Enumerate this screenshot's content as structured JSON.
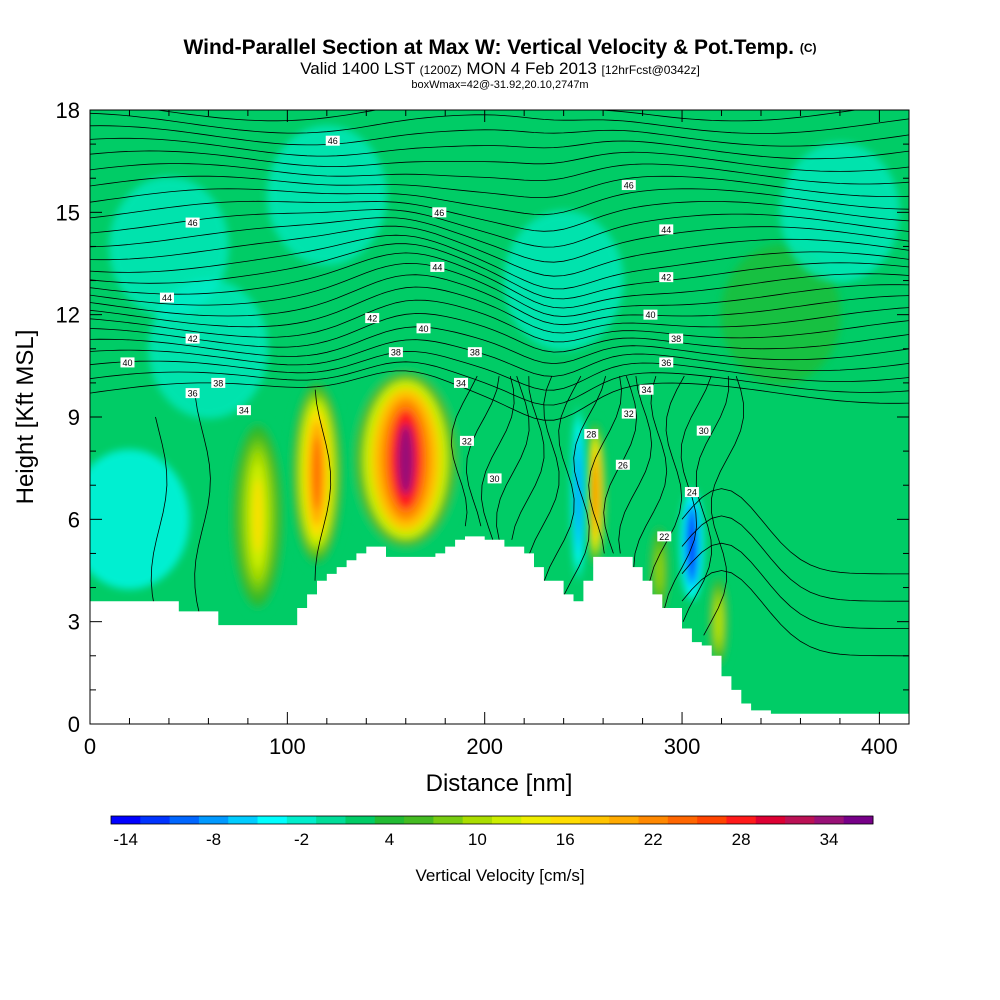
{
  "header": {
    "title": "Wind-Parallel Section at Max W: Vertical Velocity & Pot.Temp.",
    "copyright": "(C)",
    "valid_prefix": "Valid 1400 LST",
    "valid_utc": "(1200Z)",
    "valid_date": "MON 4 Feb 2013",
    "forecast": "[12hrFcst@0342z]",
    "boxinfo": "boxWmax=42@-31.92,20.10,2747m"
  },
  "colors": {
    "background": "#ffffff",
    "terrain": "#ffffff",
    "base_fill": "#00cc66",
    "contour": "#000000"
  },
  "chart_data": {
    "type": "heatmap",
    "title": "Wind-Parallel Section at Max W: Vertical Velocity & Pot.Temp.",
    "xlabel": "Distance [nm]",
    "ylabel": "Height [Kft MSL]",
    "xlim": [
      0,
      415
    ],
    "ylim": [
      0,
      18
    ],
    "x_ticks": [
      0,
      100,
      200,
      300,
      400
    ],
    "y_ticks": [
      0,
      3,
      6,
      9,
      12,
      15,
      18
    ],
    "colorbar": {
      "label": "Vertical Velocity [cm/s]",
      "tick_labels": [
        "-14",
        "-8",
        "-2",
        "4",
        "10",
        "16",
        "22",
        "28",
        "34"
      ],
      "levels": [
        -14,
        -12,
        -10,
        -8,
        -6,
        -4,
        -2,
        0,
        2,
        4,
        6,
        8,
        10,
        12,
        14,
        16,
        18,
        20,
        22,
        24,
        26,
        28,
        30,
        32,
        34,
        36
      ],
      "colors": [
        "#0000ff",
        "#0033ff",
        "#0066ff",
        "#0099ff",
        "#00ccff",
        "#00ffff",
        "#00eecc",
        "#00dd99",
        "#00cc66",
        "#22bb33",
        "#44bb22",
        "#77cc11",
        "#aadd00",
        "#ccee00",
        "#eeee00",
        "#ffdd00",
        "#ffc400",
        "#ffaa00",
        "#ff8800",
        "#ff6600",
        "#ff4400",
        "#ff1a1a",
        "#dd0033",
        "#bb1155",
        "#991177",
        "#770088"
      ]
    },
    "terrain": {
      "distance_nm": [
        0,
        45,
        65,
        105,
        110,
        115,
        120,
        125,
        130,
        135,
        140,
        145,
        150,
        165,
        175,
        180,
        185,
        190,
        200,
        210,
        220,
        225,
        230,
        240,
        245,
        250,
        255,
        260,
        270,
        275,
        280,
        285,
        290,
        300,
        305,
        310,
        315,
        320,
        325,
        330,
        335,
        345,
        400,
        415
      ],
      "height_kft": [
        3.6,
        3.3,
        2.9,
        3.4,
        3.8,
        4.2,
        4.4,
        4.6,
        4.8,
        5.0,
        5.2,
        5.2,
        4.9,
        4.9,
        5.0,
        5.2,
        5.4,
        5.5,
        5.4,
        5.2,
        5.0,
        4.6,
        4.2,
        3.8,
        3.6,
        4.2,
        4.9,
        4.9,
        4.9,
        4.6,
        4.2,
        3.8,
        3.4,
        2.8,
        2.4,
        2.3,
        2.0,
        1.4,
        1.0,
        0.6,
        0.4,
        0.3,
        0.3,
        0.3
      ]
    },
    "vertical_velocity_features": [
      {
        "name": "updraft-core-150-170",
        "x_range_nm": [
          130,
          190
        ],
        "z_range_kft": [
          5,
          10.5
        ],
        "peak_cms": 34
      },
      {
        "name": "updraft-115",
        "x_range_nm": [
          100,
          130
        ],
        "z_range_kft": [
          4.5,
          10.2
        ],
        "peak_cms": 24
      },
      {
        "name": "updraft-85",
        "x_range_nm": [
          70,
          100
        ],
        "z_range_kft": [
          3.2,
          9
        ],
        "peak_cms": 16
      },
      {
        "name": "updraft-255",
        "x_range_nm": [
          250,
          262
        ],
        "z_range_kft": [
          4.5,
          9
        ],
        "peak_cms": 24
      },
      {
        "name": "downdraft-248",
        "x_range_nm": [
          243,
          252
        ],
        "z_range_kft": [
          4,
          9.5
        ],
        "peak_cms": -10
      },
      {
        "name": "downdraft-305",
        "x_range_nm": [
          298,
          312
        ],
        "z_range_kft": [
          3.5,
          7
        ],
        "peak_cms": -14
      },
      {
        "name": "updraft-318",
        "x_range_nm": [
          312,
          325
        ],
        "z_range_kft": [
          1.5,
          4.5
        ],
        "peak_cms": 12
      },
      {
        "name": "updraft-290",
        "x_range_nm": [
          282,
          295
        ],
        "z_range_kft": [
          3,
          6
        ],
        "peak_cms": 10
      }
    ],
    "potential_temperature_labels": [
      {
        "value": "46",
        "x_nm": 123,
        "z_kft": 17.1
      },
      {
        "value": "46",
        "x_nm": 52,
        "z_kft": 14.7
      },
      {
        "value": "46",
        "x_nm": 177,
        "z_kft": 15.0
      },
      {
        "value": "46",
        "x_nm": 273,
        "z_kft": 15.8
      },
      {
        "value": "44",
        "x_nm": 176,
        "z_kft": 13.4
      },
      {
        "value": "44",
        "x_nm": 39,
        "z_kft": 12.5
      },
      {
        "value": "44",
        "x_nm": 292,
        "z_kft": 14.5
      },
      {
        "value": "42",
        "x_nm": 143,
        "z_kft": 11.9
      },
      {
        "value": "42",
        "x_nm": 52,
        "z_kft": 11.3
      },
      {
        "value": "42",
        "x_nm": 292,
        "z_kft": 13.1
      },
      {
        "value": "40",
        "x_nm": 169,
        "z_kft": 11.6
      },
      {
        "value": "40",
        "x_nm": 19,
        "z_kft": 10.6
      },
      {
        "value": "40",
        "x_nm": 284,
        "z_kft": 12.0
      },
      {
        "value": "38",
        "x_nm": 155,
        "z_kft": 10.9
      },
      {
        "value": "38",
        "x_nm": 195,
        "z_kft": 10.9
      },
      {
        "value": "38",
        "x_nm": 65,
        "z_kft": 10.0
      },
      {
        "value": "38",
        "x_nm": 297,
        "z_kft": 11.3
      },
      {
        "value": "36",
        "x_nm": 52,
        "z_kft": 9.7
      },
      {
        "value": "36",
        "x_nm": 292,
        "z_kft": 10.6
      },
      {
        "value": "34",
        "x_nm": 78,
        "z_kft": 9.2
      },
      {
        "value": "34",
        "x_nm": 188,
        "z_kft": 10.0
      },
      {
        "value": "34",
        "x_nm": 282,
        "z_kft": 9.8
      },
      {
        "value": "32",
        "x_nm": 191,
        "z_kft": 8.3
      },
      {
        "value": "32",
        "x_nm": 273,
        "z_kft": 9.1
      },
      {
        "value": "30",
        "x_nm": 205,
        "z_kft": 7.2
      },
      {
        "value": "30",
        "x_nm": 311,
        "z_kft": 8.6
      },
      {
        "value": "28",
        "x_nm": 254,
        "z_kft": 8.5
      },
      {
        "value": "26",
        "x_nm": 270,
        "z_kft": 7.6
      },
      {
        "value": "24",
        "x_nm": 305,
        "z_kft": 6.8
      },
      {
        "value": "22",
        "x_nm": 291,
        "z_kft": 5.5
      }
    ]
  }
}
